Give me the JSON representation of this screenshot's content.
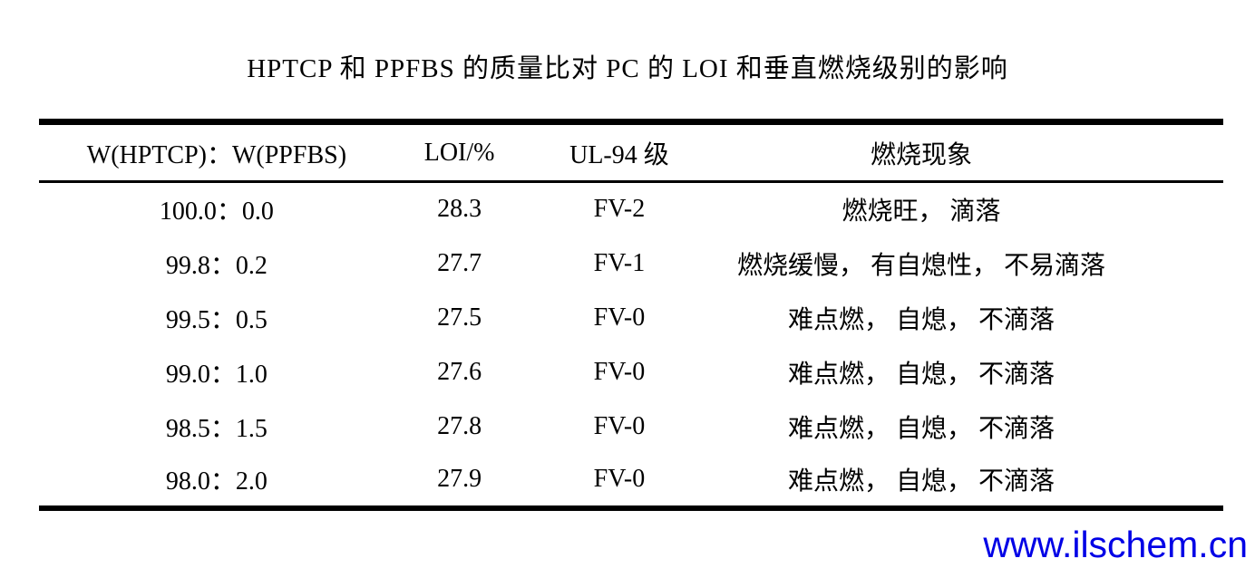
{
  "title": "HPTCP 和 PPFBS 的质量比对 PC 的 LOI 和垂直燃烧级别的影响",
  "table": {
    "headers": {
      "ratio": "W(HPTCP)：W(PPFBS)",
      "loi": "LOI/%",
      "ul94": "UL-94 级",
      "phenomenon": "燃烧现象"
    },
    "rows": [
      {
        "ratio": "100.0：0.0",
        "loi": "28.3",
        "ul94": "FV-2",
        "phenomenon": "燃烧旺， 滴落"
      },
      {
        "ratio": "99.8：0.2",
        "loi": "27.7",
        "ul94": "FV-1",
        "phenomenon": "燃烧缓慢， 有自熄性， 不易滴落"
      },
      {
        "ratio": "99.5：0.5",
        "loi": "27.5",
        "ul94": "FV-0",
        "phenomenon": "难点燃， 自熄， 不滴落"
      },
      {
        "ratio": "99.0：1.0",
        "loi": "27.6",
        "ul94": "FV-0",
        "phenomenon": "难点燃， 自熄， 不滴落"
      },
      {
        "ratio": "98.5：1.5",
        "loi": "27.8",
        "ul94": "FV-0",
        "phenomenon": "难点燃， 自熄， 不滴落"
      },
      {
        "ratio": "98.0：2.0",
        "loi": "27.9",
        "ul94": "FV-0",
        "phenomenon": "难点燃， 自熄， 不滴落"
      }
    ]
  },
  "watermark": {
    "text": "www.ilschem.cn"
  },
  "colors": {
    "text": "#000000",
    "background": "#ffffff",
    "rule": "#000000",
    "watermark": "#0000e6"
  }
}
